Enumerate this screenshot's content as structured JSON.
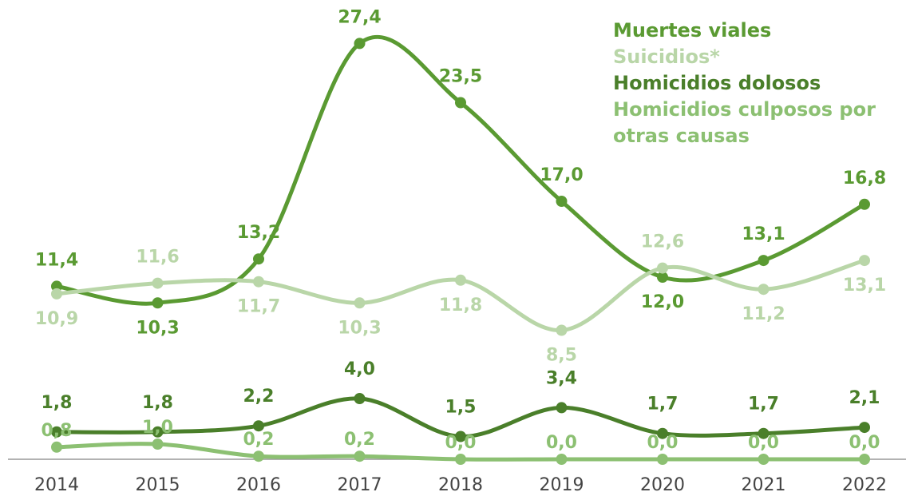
{
  "chart_data": {
    "type": "line",
    "categories": [
      "2014",
      "2015",
      "2016",
      "2017",
      "2018",
      "2019",
      "2020",
      "2021",
      "2022"
    ],
    "ylim": [
      0,
      29
    ],
    "series": [
      {
        "name": "Muertes viales",
        "color": "#5a9a32",
        "values": [
          11.4,
          10.3,
          13.2,
          27.4,
          23.5,
          17.0,
          12.0,
          13.1,
          16.8
        ],
        "value_labels": [
          "11,4",
          "10,3",
          "13,2",
          "27,4",
          "23,5",
          "17,0",
          "12,0",
          "13,1",
          "16,8"
        ]
      },
      {
        "name": "Suicidios*",
        "color": "#b9d6a8",
        "values": [
          10.9,
          11.6,
          11.7,
          10.3,
          11.8,
          8.5,
          12.6,
          11.2,
          13.1
        ],
        "value_labels": [
          "10,9",
          "11,6",
          "11,7",
          "10,3",
          "11,8",
          "8,5",
          "12,6",
          "11,2",
          "13,1"
        ]
      },
      {
        "name": "Homicidios dolosos",
        "color": "#4a7f2a",
        "values": [
          1.8,
          1.8,
          2.2,
          4.0,
          1.5,
          3.4,
          1.7,
          1.7,
          2.1
        ],
        "value_labels": [
          "1,8",
          "1,8",
          "2,2",
          "4,0",
          "1,5",
          "3,4",
          "1,7",
          "1,7",
          "2,1"
        ]
      },
      {
        "name": "Homicidios culposos por otras causas",
        "color": "#8cc072",
        "values": [
          0.8,
          1.0,
          0.2,
          0.2,
          0.0,
          0.0,
          0.0,
          0.0,
          0.0
        ],
        "value_labels": [
          "0,8",
          "1,0",
          "0,2",
          "0,2",
          "0,0",
          "0,0",
          "0,0",
          "0,0",
          "0,0"
        ]
      }
    ],
    "legend": "upper right"
  }
}
